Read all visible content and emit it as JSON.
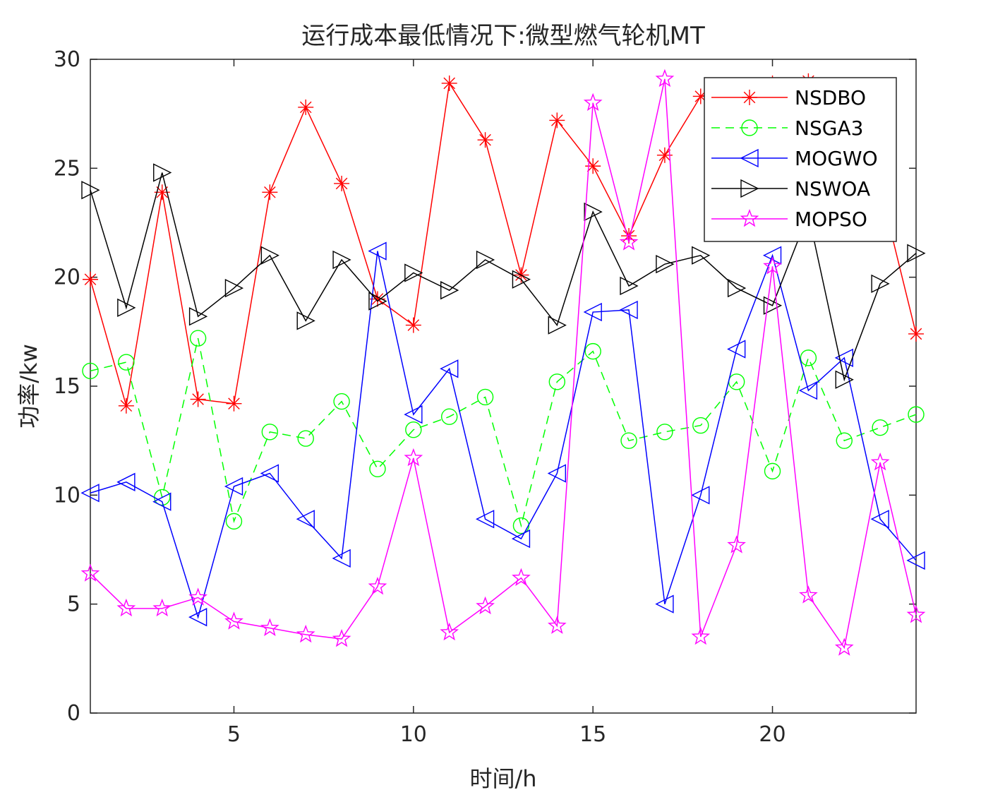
{
  "chart_data": {
    "type": "line",
    "title": "运行成本最低情况下:微型燃气轮机MT",
    "xlabel": "时间/h",
    "ylabel": "功率/kw",
    "xlim": [
      1,
      24
    ],
    "ylim": [
      0,
      30
    ],
    "xticks": [
      5,
      10,
      15,
      20
    ],
    "yticks": [
      0,
      5,
      10,
      15,
      20,
      25,
      30
    ],
    "grid": false,
    "legend_position": "top-right",
    "x": [
      1,
      2,
      3,
      4,
      5,
      6,
      7,
      8,
      9,
      10,
      11,
      12,
      13,
      14,
      15,
      16,
      17,
      18,
      19,
      20,
      21,
      22,
      23,
      24
    ],
    "series": [
      {
        "name": "NSDBO",
        "color": "#ff0000",
        "line": "solid",
        "marker": "asterisk",
        "values": [
          19.9,
          14.1,
          23.9,
          14.4,
          14.2,
          23.9,
          27.8,
          24.3,
          19.0,
          17.8,
          28.9,
          26.3,
          20.1,
          27.2,
          25.1,
          21.9,
          25.6,
          28.3,
          28.7,
          28.9,
          29.0,
          28.6,
          24.1,
          17.4
        ]
      },
      {
        "name": "NSGA3",
        "color": "#00ff00",
        "line": "dashed",
        "marker": "circle",
        "values": [
          15.7,
          16.1,
          9.9,
          17.2,
          8.8,
          12.9,
          12.6,
          14.3,
          11.2,
          13.0,
          13.6,
          14.5,
          8.6,
          15.2,
          16.6,
          12.5,
          12.9,
          13.2,
          15.2,
          11.1,
          16.3,
          12.5,
          13.1,
          13.7
        ]
      },
      {
        "name": "MOGWO",
        "color": "#0000ff",
        "line": "solid",
        "marker": "triangle-left",
        "values": [
          10.1,
          10.6,
          9.7,
          4.4,
          10.4,
          11.0,
          8.9,
          7.1,
          21.2,
          13.7,
          15.8,
          8.9,
          8.0,
          11.0,
          18.4,
          18.5,
          5.0,
          10.0,
          16.7,
          21.0,
          14.8,
          16.3,
          8.9,
          7.0
        ]
      },
      {
        "name": "NSWOA",
        "color": "#000000",
        "line": "solid",
        "marker": "triangle-right",
        "values": [
          24.0,
          18.6,
          24.8,
          18.2,
          19.5,
          21.0,
          18.0,
          20.8,
          18.9,
          20.2,
          19.4,
          20.8,
          19.9,
          17.8,
          23.0,
          19.6,
          20.6,
          21.0,
          19.5,
          18.7,
          22.9,
          15.3,
          19.7,
          21.1
        ]
      },
      {
        "name": "MOPSO",
        "color": "#ff00ff",
        "line": "solid",
        "marker": "pentagram",
        "values": [
          6.4,
          4.8,
          4.8,
          5.3,
          4.2,
          3.9,
          3.6,
          3.4,
          5.8,
          11.7,
          3.7,
          4.9,
          6.2,
          4.0,
          28.0,
          21.6,
          29.1,
          3.5,
          7.7,
          20.5,
          5.4,
          3.0,
          11.5,
          4.5
        ]
      }
    ]
  }
}
